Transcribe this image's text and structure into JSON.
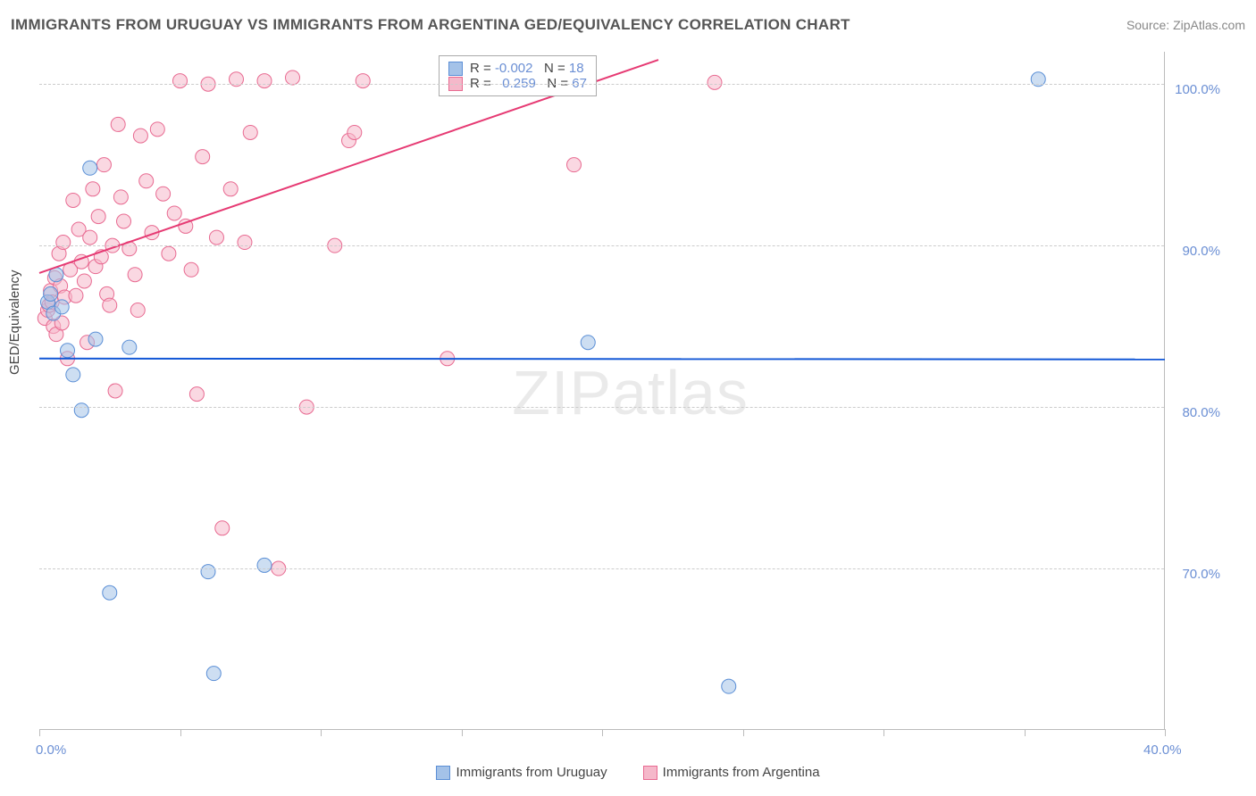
{
  "title": "IMMIGRANTS FROM URUGUAY VS IMMIGRANTS FROM ARGENTINA GED/EQUIVALENCY CORRELATION CHART",
  "source": "Source: ZipAtlas.com",
  "y_label": "GED/Equivalency",
  "watermark": "ZIPatlas",
  "chart": {
    "type": "scatter-with-regression",
    "xlim": [
      0,
      40
    ],
    "ylim": [
      60,
      102
    ],
    "x_ticks": [
      0,
      5,
      10,
      15,
      20,
      25,
      30,
      35,
      40
    ],
    "x_tick_labels": {
      "0": "0.0%",
      "40": "40.0%"
    },
    "y_gridlines": [
      70,
      80,
      90,
      100
    ],
    "y_tick_labels": {
      "70": "70.0%",
      "80": "80.0%",
      "90": "90.0%",
      "100": "100.0%"
    },
    "background_color": "#ffffff",
    "grid_color": "#cccccc",
    "axis_color": "#bbbbbb",
    "tick_label_color": "#6b8fd4",
    "marker_radius": 8,
    "marker_opacity": 0.55,
    "line_width": 2
  },
  "series_uruguay": {
    "label": "Immigrants from Uruguay",
    "fill_color": "#a4c2e8",
    "stroke_color": "#5b8fd6",
    "line_color": "#1257d6",
    "R": "-0.002",
    "N": "18",
    "regression": {
      "x1": 0,
      "y1": 83.0,
      "x2": 40,
      "y2": 82.95
    },
    "points": [
      [
        0.3,
        86.5
      ],
      [
        0.4,
        87.0
      ],
      [
        0.5,
        85.8
      ],
      [
        0.6,
        88.2
      ],
      [
        0.8,
        86.2
      ],
      [
        1.0,
        83.5
      ],
      [
        1.2,
        82.0
      ],
      [
        1.5,
        79.8
      ],
      [
        1.8,
        94.8
      ],
      [
        2.0,
        84.2
      ],
      [
        2.5,
        68.5
      ],
      [
        3.2,
        83.7
      ],
      [
        6.0,
        69.8
      ],
      [
        6.2,
        63.5
      ],
      [
        8.0,
        70.2
      ],
      [
        19.5,
        84.0
      ],
      [
        24.5,
        62.7
      ],
      [
        35.5,
        100.3
      ]
    ]
  },
  "series_argentina": {
    "label": "Immigrants from Argentina",
    "fill_color": "#f5b8ca",
    "stroke_color": "#e86a91",
    "line_color": "#e63a73",
    "R": "0.259",
    "N": "67",
    "regression": {
      "x1": 0,
      "y1": 88.3,
      "x2": 22,
      "y2": 101.5
    },
    "points": [
      [
        0.2,
        85.5
      ],
      [
        0.3,
        86.0
      ],
      [
        0.35,
        86.3
      ],
      [
        0.4,
        87.2
      ],
      [
        0.45,
        86.5
      ],
      [
        0.5,
        85.0
      ],
      [
        0.55,
        88.0
      ],
      [
        0.6,
        84.5
      ],
      [
        0.7,
        89.5
      ],
      [
        0.75,
        87.5
      ],
      [
        0.8,
        85.2
      ],
      [
        0.85,
        90.2
      ],
      [
        0.9,
        86.8
      ],
      [
        1.0,
        83.0
      ],
      [
        1.1,
        88.5
      ],
      [
        1.2,
        92.8
      ],
      [
        1.3,
        86.9
      ],
      [
        1.4,
        91.0
      ],
      [
        1.5,
        89.0
      ],
      [
        1.6,
        87.8
      ],
      [
        1.7,
        84.0
      ],
      [
        1.8,
        90.5
      ],
      [
        1.9,
        93.5
      ],
      [
        2.0,
        88.7
      ],
      [
        2.1,
        91.8
      ],
      [
        2.2,
        89.3
      ],
      [
        2.3,
        95.0
      ],
      [
        2.4,
        87.0
      ],
      [
        2.5,
        86.3
      ],
      [
        2.6,
        90.0
      ],
      [
        2.7,
        81.0
      ],
      [
        2.8,
        97.5
      ],
      [
        2.9,
        93.0
      ],
      [
        3.0,
        91.5
      ],
      [
        3.2,
        89.8
      ],
      [
        3.4,
        88.2
      ],
      [
        3.5,
        86.0
      ],
      [
        3.6,
        96.8
      ],
      [
        3.8,
        94.0
      ],
      [
        4.0,
        90.8
      ],
      [
        4.2,
        97.2
      ],
      [
        4.4,
        93.2
      ],
      [
        4.6,
        89.5
      ],
      [
        4.8,
        92.0
      ],
      [
        5.0,
        100.2
      ],
      [
        5.2,
        91.2
      ],
      [
        5.4,
        88.5
      ],
      [
        5.6,
        80.8
      ],
      [
        5.8,
        95.5
      ],
      [
        6.0,
        100.0
      ],
      [
        6.3,
        90.5
      ],
      [
        6.5,
        72.5
      ],
      [
        6.8,
        93.5
      ],
      [
        7.0,
        100.3
      ],
      [
        7.3,
        90.2
      ],
      [
        7.5,
        97.0
      ],
      [
        8.0,
        100.2
      ],
      [
        8.5,
        70.0
      ],
      [
        9.0,
        100.4
      ],
      [
        9.5,
        80.0
      ],
      [
        10.5,
        90.0
      ],
      [
        11.0,
        96.5
      ],
      [
        11.2,
        97.0
      ],
      [
        11.5,
        100.2
      ],
      [
        14.5,
        83.0
      ],
      [
        19.0,
        95.0
      ],
      [
        24.0,
        100.1
      ]
    ]
  },
  "bottom_legend": {
    "items": [
      "Immigrants from Uruguay",
      "Immigrants from Argentina"
    ]
  },
  "top_legend": {
    "R_label": "R =",
    "N_label": "N ="
  }
}
